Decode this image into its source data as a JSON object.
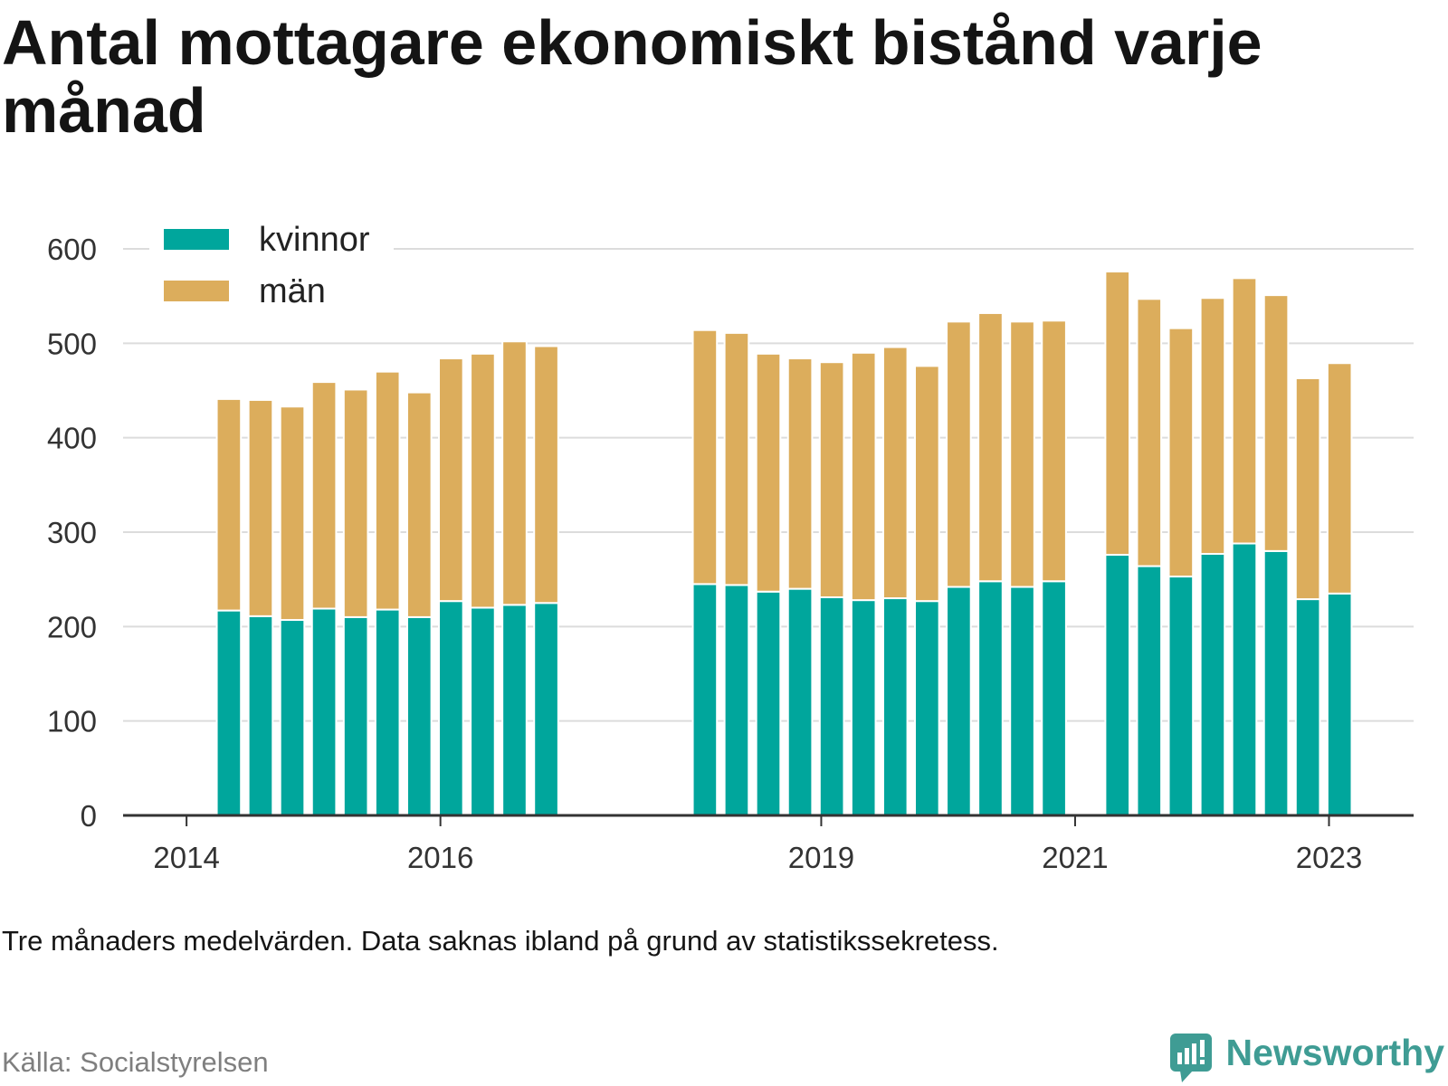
{
  "footnote": "Tre månaders medelvärden. Data saknas ibland på grund av statistikssekretess.",
  "source": "Källa: Socialstyrelsen",
  "brand": {
    "name": "Newsworthy",
    "color": "#3f9c94",
    "icon": "bar-chart-speech-bubble-icon"
  },
  "chart_data": {
    "type": "bar",
    "stacked": true,
    "title": "Antal mottagare ekonomiskt bistånd varje månad",
    "xlabel": "",
    "ylabel": "",
    "xlim": [
      "2013-07",
      "2023-09"
    ],
    "ylim": [
      0,
      600
    ],
    "yticks": [
      0,
      100,
      200,
      300,
      400,
      500,
      600
    ],
    "xticks": [
      "2014",
      "2016",
      "2019",
      "2021",
      "2023"
    ],
    "grid": "horizontal",
    "legend": "top-left",
    "x": [
      "2014-05",
      "2014-08",
      "2014-11",
      "2015-02",
      "2015-05",
      "2015-08",
      "2015-11",
      "2016-02",
      "2016-05",
      "2016-08",
      "2016-11",
      "2018-02",
      "2018-05",
      "2018-08",
      "2018-11",
      "2019-02",
      "2019-05",
      "2019-08",
      "2019-11",
      "2020-02",
      "2020-05",
      "2020-08",
      "2020-11",
      "2021-05",
      "2021-08",
      "2021-11",
      "2022-02",
      "2022-05",
      "2022-08",
      "2022-11",
      "2023-02"
    ],
    "series": [
      {
        "name": "kvinnor",
        "color": "#00a69c",
        "values": [
          217,
          211,
          207,
          219,
          210,
          218,
          210,
          227,
          220,
          223,
          225,
          245,
          244,
          237,
          240,
          231,
          228,
          230,
          227,
          242,
          248,
          242,
          248,
          276,
          264,
          253,
          277,
          288,
          280,
          229,
          235
        ]
      },
      {
        "name": "män",
        "color": "#dcad5c",
        "values": [
          224,
          229,
          226,
          240,
          241,
          252,
          238,
          257,
          269,
          279,
          272,
          269,
          267,
          252,
          244,
          249,
          262,
          266,
          249,
          281,
          284,
          281,
          276,
          300,
          283,
          263,
          271,
          281,
          271,
          234,
          244
        ]
      }
    ]
  }
}
